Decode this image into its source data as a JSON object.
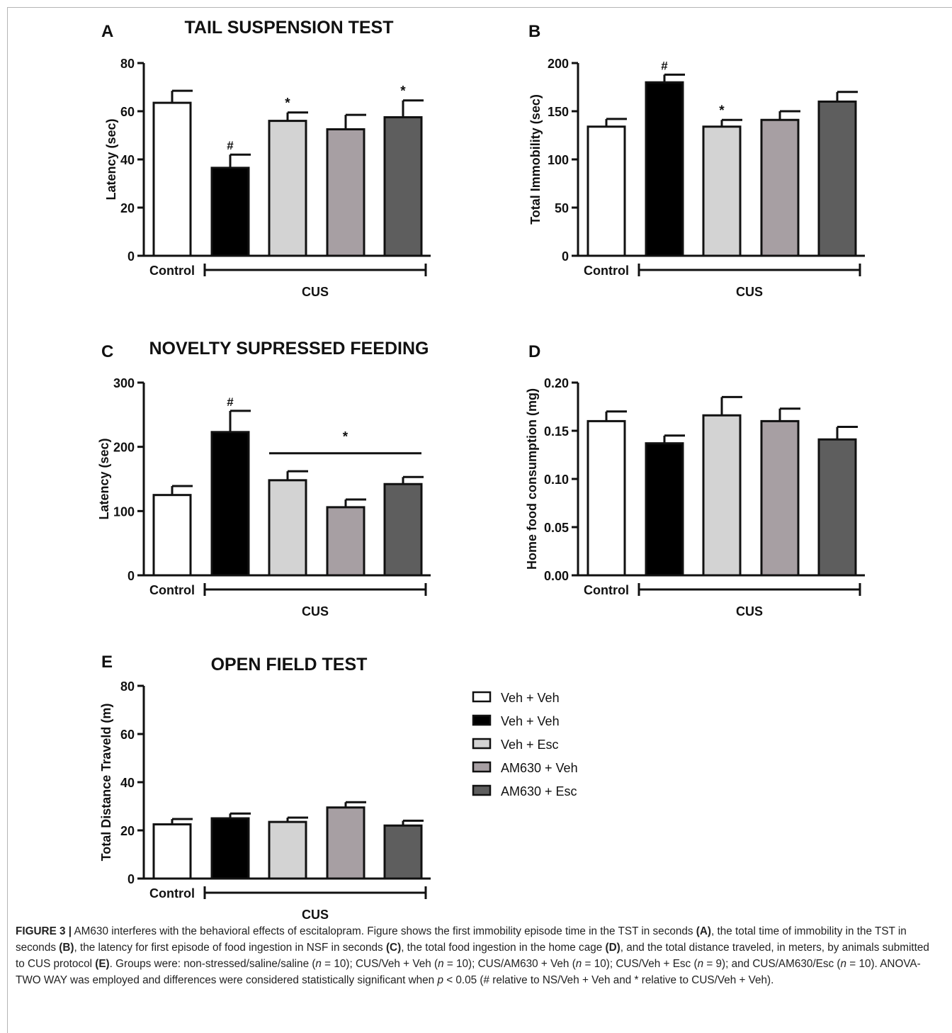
{
  "figure": {
    "panels": [
      {
        "letter": "A",
        "title": "TAIL SUSPENSION TEST",
        "xlabel_control": "Control",
        "xlabel_group": "CUS",
        "ylabel": "Latency (sec)"
      },
      {
        "letter": "B",
        "title": "",
        "xlabel_control": "Control",
        "xlabel_group": "CUS",
        "ylabel": "Total Immobility (sec)"
      },
      {
        "letter": "C",
        "title": "NOVELTY SUPRESSED FEEDING",
        "xlabel_control": "Control",
        "xlabel_group": "CUS",
        "ylabel": "Latency (sec)"
      },
      {
        "letter": "D",
        "title": "",
        "xlabel_control": "Control",
        "xlabel_group": "CUS",
        "ylabel": "Home food consumption (mg)"
      },
      {
        "letter": "E",
        "title": "OPEN FIELD TEST",
        "xlabel_control": "Control",
        "xlabel_group": "CUS",
        "ylabel": "Total Distance Traveld  (m)"
      }
    ],
    "legend": [
      {
        "label": "Veh + Veh",
        "color": "#ffffff"
      },
      {
        "label": "Veh + Veh",
        "color": "#000000"
      },
      {
        "label": "Veh + Esc",
        "color": "#d3d3d3"
      },
      {
        "label": "AM630 + Veh",
        "color": "#a79fa3"
      },
      {
        "label": "AM630 + Esc",
        "color": "#5e5e5e"
      }
    ]
  },
  "chart_data": [
    {
      "type": "bar",
      "panel": "A",
      "title": "TAIL SUSPENSION TEST",
      "xlabel": "Control / CUS",
      "ylabel": "Latency (sec)",
      "ylim": [
        0,
        80
      ],
      "yticks": [
        "0",
        "20",
        "40",
        "60",
        "80"
      ],
      "categories": [
        "Veh + Veh",
        "Veh + Veh",
        "Veh + Esc",
        "AM630 + Veh",
        "AM630 + Esc"
      ],
      "values": [
        63.5,
        36.5,
        56,
        52.5,
        57.5
      ],
      "errors": [
        5,
        5.5,
        3.5,
        6,
        7
      ],
      "colors": [
        "#ffffff",
        "#000000",
        "#d3d3d3",
        "#a79fa3",
        "#5e5e5e"
      ],
      "annotations": [
        "",
        "#",
        "*",
        "",
        "*"
      ]
    },
    {
      "type": "bar",
      "panel": "B",
      "title": "",
      "xlabel": "Control / CUS",
      "ylabel": "Total Immobility (sec)",
      "ylim": [
        0,
        200
      ],
      "yticks": [
        "0",
        "50",
        "100",
        "150",
        "200"
      ],
      "categories": [
        "Veh + Veh",
        "Veh + Veh",
        "Veh + Esc",
        "AM630 + Veh",
        "AM630 + Esc"
      ],
      "values": [
        134,
        180,
        134,
        141,
        160
      ],
      "errors": [
        8,
        8,
        7,
        9,
        10
      ],
      "colors": [
        "#ffffff",
        "#000000",
        "#d3d3d3",
        "#a79fa3",
        "#5e5e5e"
      ],
      "annotations": [
        "",
        "#",
        "*",
        "",
        ""
      ]
    },
    {
      "type": "bar",
      "panel": "C",
      "title": "NOVELTY SUPRESSED FEEDING",
      "xlabel": "Control / CUS",
      "ylabel": "Latency (sec)",
      "ylim": [
        0,
        300
      ],
      "yticks": [
        "0",
        "100",
        "200",
        "300"
      ],
      "categories": [
        "Veh + Veh",
        "Veh + Veh",
        "Veh + Esc",
        "AM630 + Veh",
        "AM630 + Esc"
      ],
      "values": [
        125,
        223,
        148,
        106,
        142
      ],
      "errors": [
        14,
        33,
        14,
        12,
        11
      ],
      "colors": [
        "#ffffff",
        "#000000",
        "#d3d3d3",
        "#a79fa3",
        "#5e5e5e"
      ],
      "annotations": [
        "",
        "#",
        "",
        "",
        ""
      ],
      "group_annotation": {
        "from": 2,
        "to": 4,
        "y": 190,
        "label": "*"
      }
    },
    {
      "type": "bar",
      "panel": "D",
      "title": "",
      "xlabel": "Control / CUS",
      "ylabel": "Home food consumption (mg)",
      "ylim": [
        0,
        0.2
      ],
      "yticks": [
        "0.00",
        "0.05",
        "0.10",
        "0.15",
        "0.20"
      ],
      "categories": [
        "Veh + Veh",
        "Veh + Veh",
        "Veh + Esc",
        "AM630 + Veh",
        "AM630 + Esc"
      ],
      "values": [
        0.16,
        0.137,
        0.166,
        0.16,
        0.141
      ],
      "errors": [
        0.01,
        0.008,
        0.019,
        0.013,
        0.013
      ],
      "colors": [
        "#ffffff",
        "#000000",
        "#d3d3d3",
        "#a79fa3",
        "#5e5e5e"
      ],
      "annotations": [
        "",
        "",
        "",
        "",
        ""
      ]
    },
    {
      "type": "bar",
      "panel": "E",
      "title": "OPEN FIELD TEST",
      "xlabel": "Control / CUS",
      "ylabel": "Total Distance Traveld  (m)",
      "ylim": [
        0,
        80
      ],
      "yticks": [
        "0",
        "20",
        "40",
        "60",
        "80"
      ],
      "categories": [
        "Veh + Veh",
        "Veh + Veh",
        "Veh + Esc",
        "AM630 + Veh",
        "AM630 + Esc"
      ],
      "values": [
        22.5,
        25,
        23.5,
        29.5,
        22
      ],
      "errors": [
        2.2,
        2,
        1.8,
        2.2,
        2
      ],
      "colors": [
        "#ffffff",
        "#000000",
        "#d3d3d3",
        "#a79fa3",
        "#5e5e5e"
      ],
      "annotations": [
        "",
        "",
        "",
        "",
        ""
      ]
    }
  ],
  "caption": {
    "label": "FIGURE 3 |",
    "s01": " AM630 interferes with the behavioral effects of escitalopram. Figure shows the first immobility episode time in the TST in seconds ",
    "r01": "(A)",
    "s02": ", the total time of immobility in the TST in seconds ",
    "r02": "(B)",
    "s03": ", the latency for first episode of food ingestion in NSF in seconds ",
    "r03": "(C)",
    "s04": ", the total food ingestion in the home cage ",
    "r04": "(D)",
    "s05": ", and the total distance traveled, in meters, by animals submitted to CUS protocol ",
    "r05": "(E)",
    "s06": ". Groups were: non-stressed/saline/saline (",
    "n_italic": "n",
    "s07": " = 10); CUS/Veh + Veh (",
    "s08": " = 10); CUS/AM630 + Veh (",
    "s09": " = 10); CUS/Veh + Esc (",
    "s10": " = 9); and CUS/AM630/Esc (",
    "s11": " = 10). ANOVA-TWO WAY was employed and differences were considered statistically significant when ",
    "p_italic": "p",
    "s12": " < 0.05 (# relative to NS/Veh + Veh and * relative to CUS/Veh + Veh)."
  }
}
